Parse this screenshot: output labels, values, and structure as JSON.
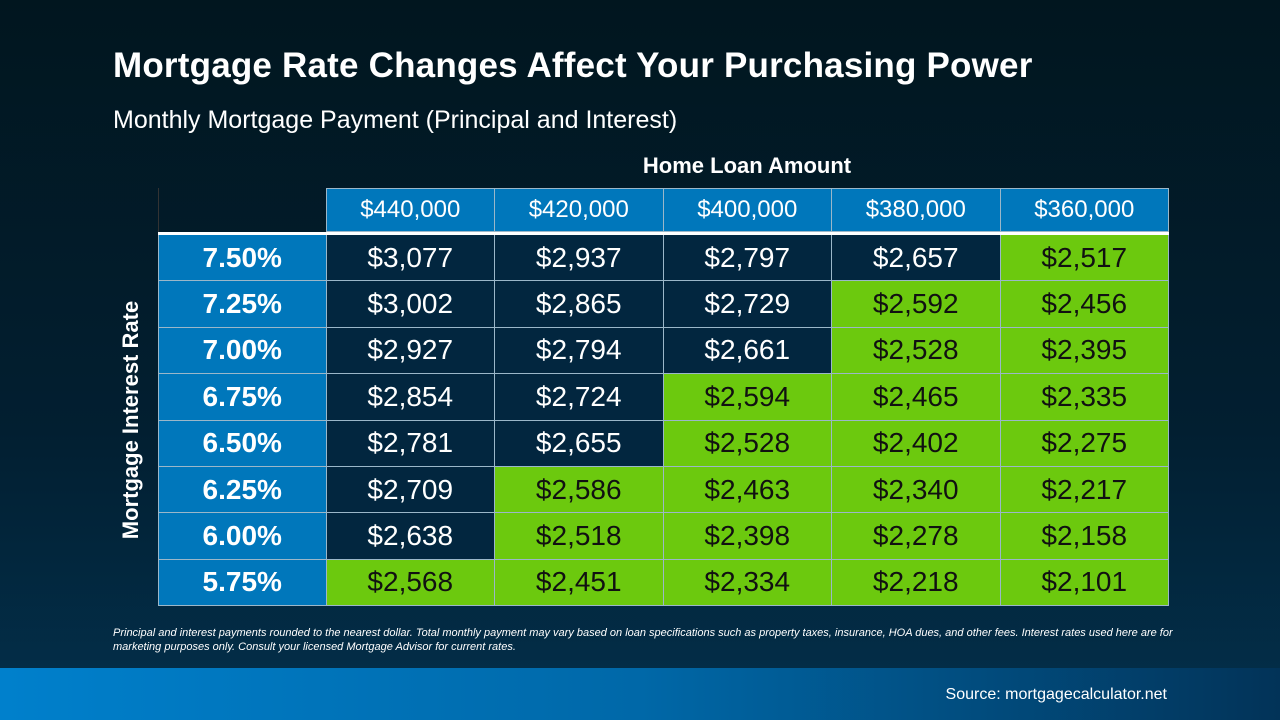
{
  "title": "Mortgage Rate Changes Affect Your Purchasing Power",
  "subtitle": "Monthly Mortgage Payment (Principal and Interest)",
  "footnote": "Principal and interest payments rounded to the nearest dollar. Total monthly payment may vary based on loan specifications such as property taxes, insurance, HOA dues, and other fees. Interest rates used here are for marketing purposes only. Consult your licensed Mortgage Advisor for current rates.",
  "source": "Source: mortgagecalculator.net",
  "colors": {
    "header_blue": "#0077bb",
    "dark_cell": "#02263f",
    "highlight_green": "#6cc90e"
  },
  "chart_data": {
    "type": "table",
    "col_label": "Home Loan Amount",
    "row_label": "Mortgage Interest Rate",
    "columns": [
      "$440,000",
      "$420,000",
      "$400,000",
      "$380,000",
      "$360,000"
    ],
    "rows": [
      {
        "rate": "7.50%",
        "values": [
          "$3,077",
          "$2,937",
          "$2,797",
          "$2,657",
          "$2,517"
        ],
        "highlight": [
          false,
          false,
          false,
          false,
          true
        ]
      },
      {
        "rate": "7.25%",
        "values": [
          "$3,002",
          "$2,865",
          "$2,729",
          "$2,592",
          "$2,456"
        ],
        "highlight": [
          false,
          false,
          false,
          true,
          true
        ]
      },
      {
        "rate": "7.00%",
        "values": [
          "$2,927",
          "$2,794",
          "$2,661",
          "$2,528",
          "$2,395"
        ],
        "highlight": [
          false,
          false,
          false,
          true,
          true
        ]
      },
      {
        "rate": "6.75%",
        "values": [
          "$2,854",
          "$2,724",
          "$2,594",
          "$2,465",
          "$2,335"
        ],
        "highlight": [
          false,
          false,
          true,
          true,
          true
        ]
      },
      {
        "rate": "6.50%",
        "values": [
          "$2,781",
          "$2,655",
          "$2,528",
          "$2,402",
          "$2,275"
        ],
        "highlight": [
          false,
          false,
          true,
          true,
          true
        ]
      },
      {
        "rate": "6.25%",
        "values": [
          "$2,709",
          "$2,586",
          "$2,463",
          "$2,340",
          "$2,217"
        ],
        "highlight": [
          false,
          true,
          true,
          true,
          true
        ]
      },
      {
        "rate": "6.00%",
        "values": [
          "$2,638",
          "$2,518",
          "$2,398",
          "$2,278",
          "$2,158"
        ],
        "highlight": [
          false,
          true,
          true,
          true,
          true
        ]
      },
      {
        "rate": "5.75%",
        "values": [
          "$2,568",
          "$2,451",
          "$2,334",
          "$2,218",
          "$2,101"
        ],
        "highlight": [
          true,
          true,
          true,
          true,
          true
        ]
      }
    ]
  }
}
